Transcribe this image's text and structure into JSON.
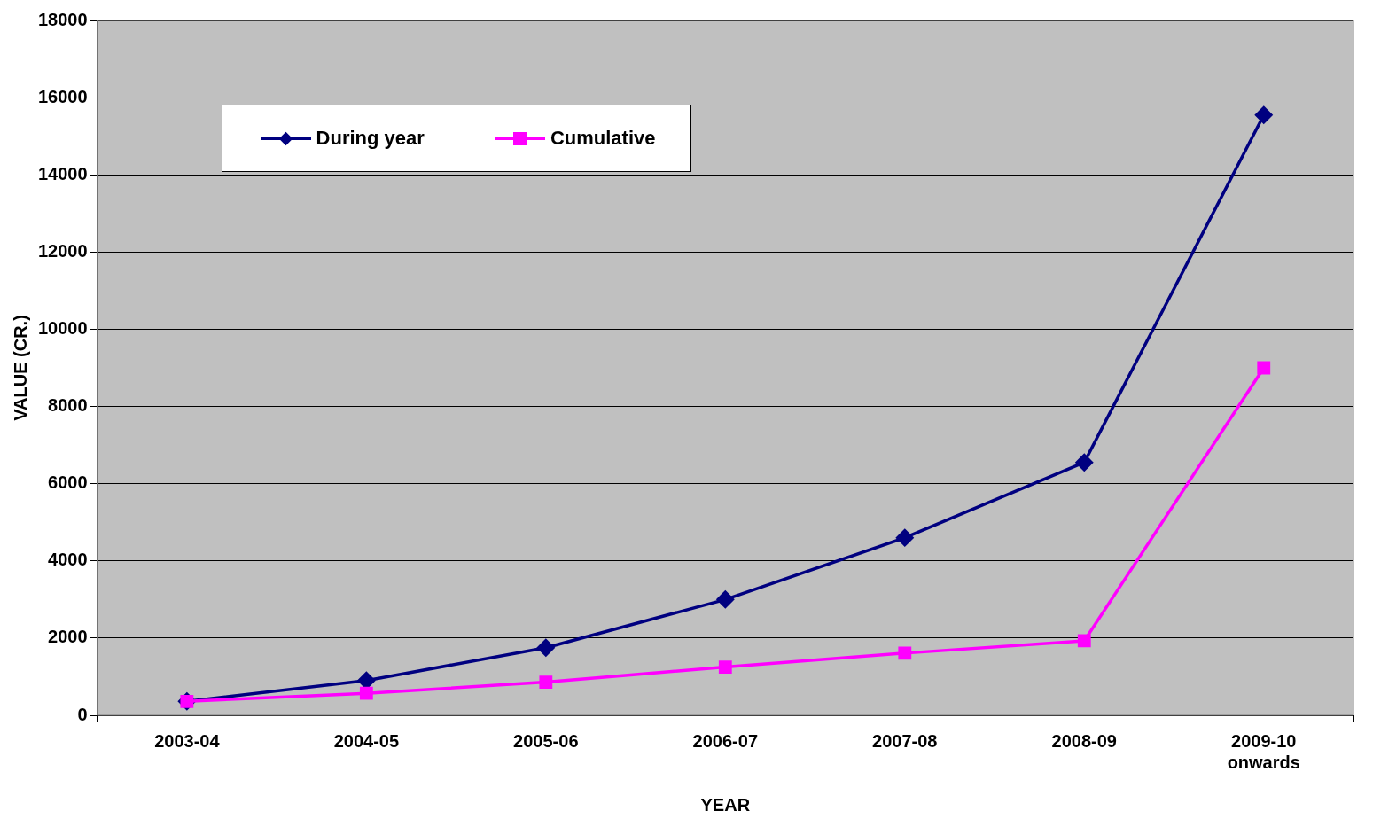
{
  "chart_data": {
    "type": "line",
    "xlabel": "YEAR",
    "ylabel": "VALUE (CR.)",
    "categories": [
      "2003-04",
      "2004-05",
      "2005-06",
      "2006-07",
      "2007-08",
      "2008-09",
      "2009-10 onwards"
    ],
    "series": [
      {
        "name": "During year",
        "color": "#000080",
        "marker": "diamond",
        "values": [
          360,
          900,
          1750,
          3000,
          4600,
          6550,
          15550
        ]
      },
      {
        "name": "Cumulative",
        "color": "#ff00ff",
        "marker": "square",
        "values": [
          360,
          570,
          860,
          1250,
          1610,
          1930,
          9000
        ]
      }
    ],
    "ylim": [
      0,
      18000
    ],
    "yticks": [
      0,
      2000,
      4000,
      6000,
      8000,
      10000,
      12000,
      14000,
      16000,
      18000
    ],
    "grid": "y",
    "legend": "top left",
    "line_style": "solid"
  }
}
